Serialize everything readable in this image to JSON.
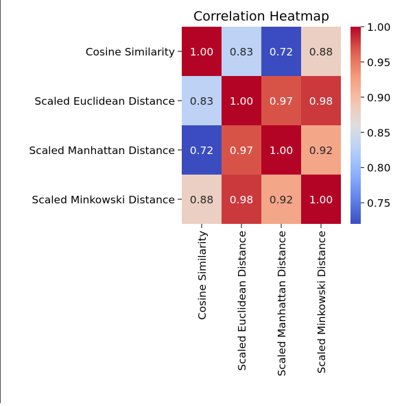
{
  "chart_data": {
    "type": "heatmap",
    "title": "Correlation Heatmap",
    "xlabel": "",
    "ylabel": "",
    "row_labels": [
      "Cosine Similarity",
      "Scaled Euclidean Distance",
      "Scaled Manhattan Distance",
      "Scaled Minkowski Distance"
    ],
    "col_labels": [
      "Cosine Similarity",
      "Scaled Euclidean Distance",
      "Scaled Manhattan Distance",
      "Scaled Minkowski Distance"
    ],
    "values": [
      [
        1.0,
        0.83,
        0.72,
        0.88
      ],
      [
        0.83,
        1.0,
        0.97,
        0.98
      ],
      [
        0.72,
        0.97,
        1.0,
        0.92
      ],
      [
        0.88,
        0.98,
        0.92,
        1.0
      ]
    ],
    "cell_labels": [
      [
        "1.00",
        "0.83",
        "0.72",
        "0.88"
      ],
      [
        "0.83",
        "1.00",
        "0.97",
        "0.98"
      ],
      [
        "0.72",
        "0.97",
        "1.00",
        "0.92"
      ],
      [
        "0.88",
        "0.98",
        "0.92",
        "1.00"
      ]
    ],
    "colorbar": {
      "colormap": "coolwarm",
      "range": [
        0.72,
        1.0
      ],
      "ticks": [
        "0.75",
        "0.80",
        "0.85",
        "0.90",
        "0.95",
        "1.00"
      ],
      "tick_values": [
        0.75,
        0.8,
        0.85,
        0.9,
        0.95,
        1.0
      ]
    },
    "grid": false,
    "legend_position": "right"
  }
}
